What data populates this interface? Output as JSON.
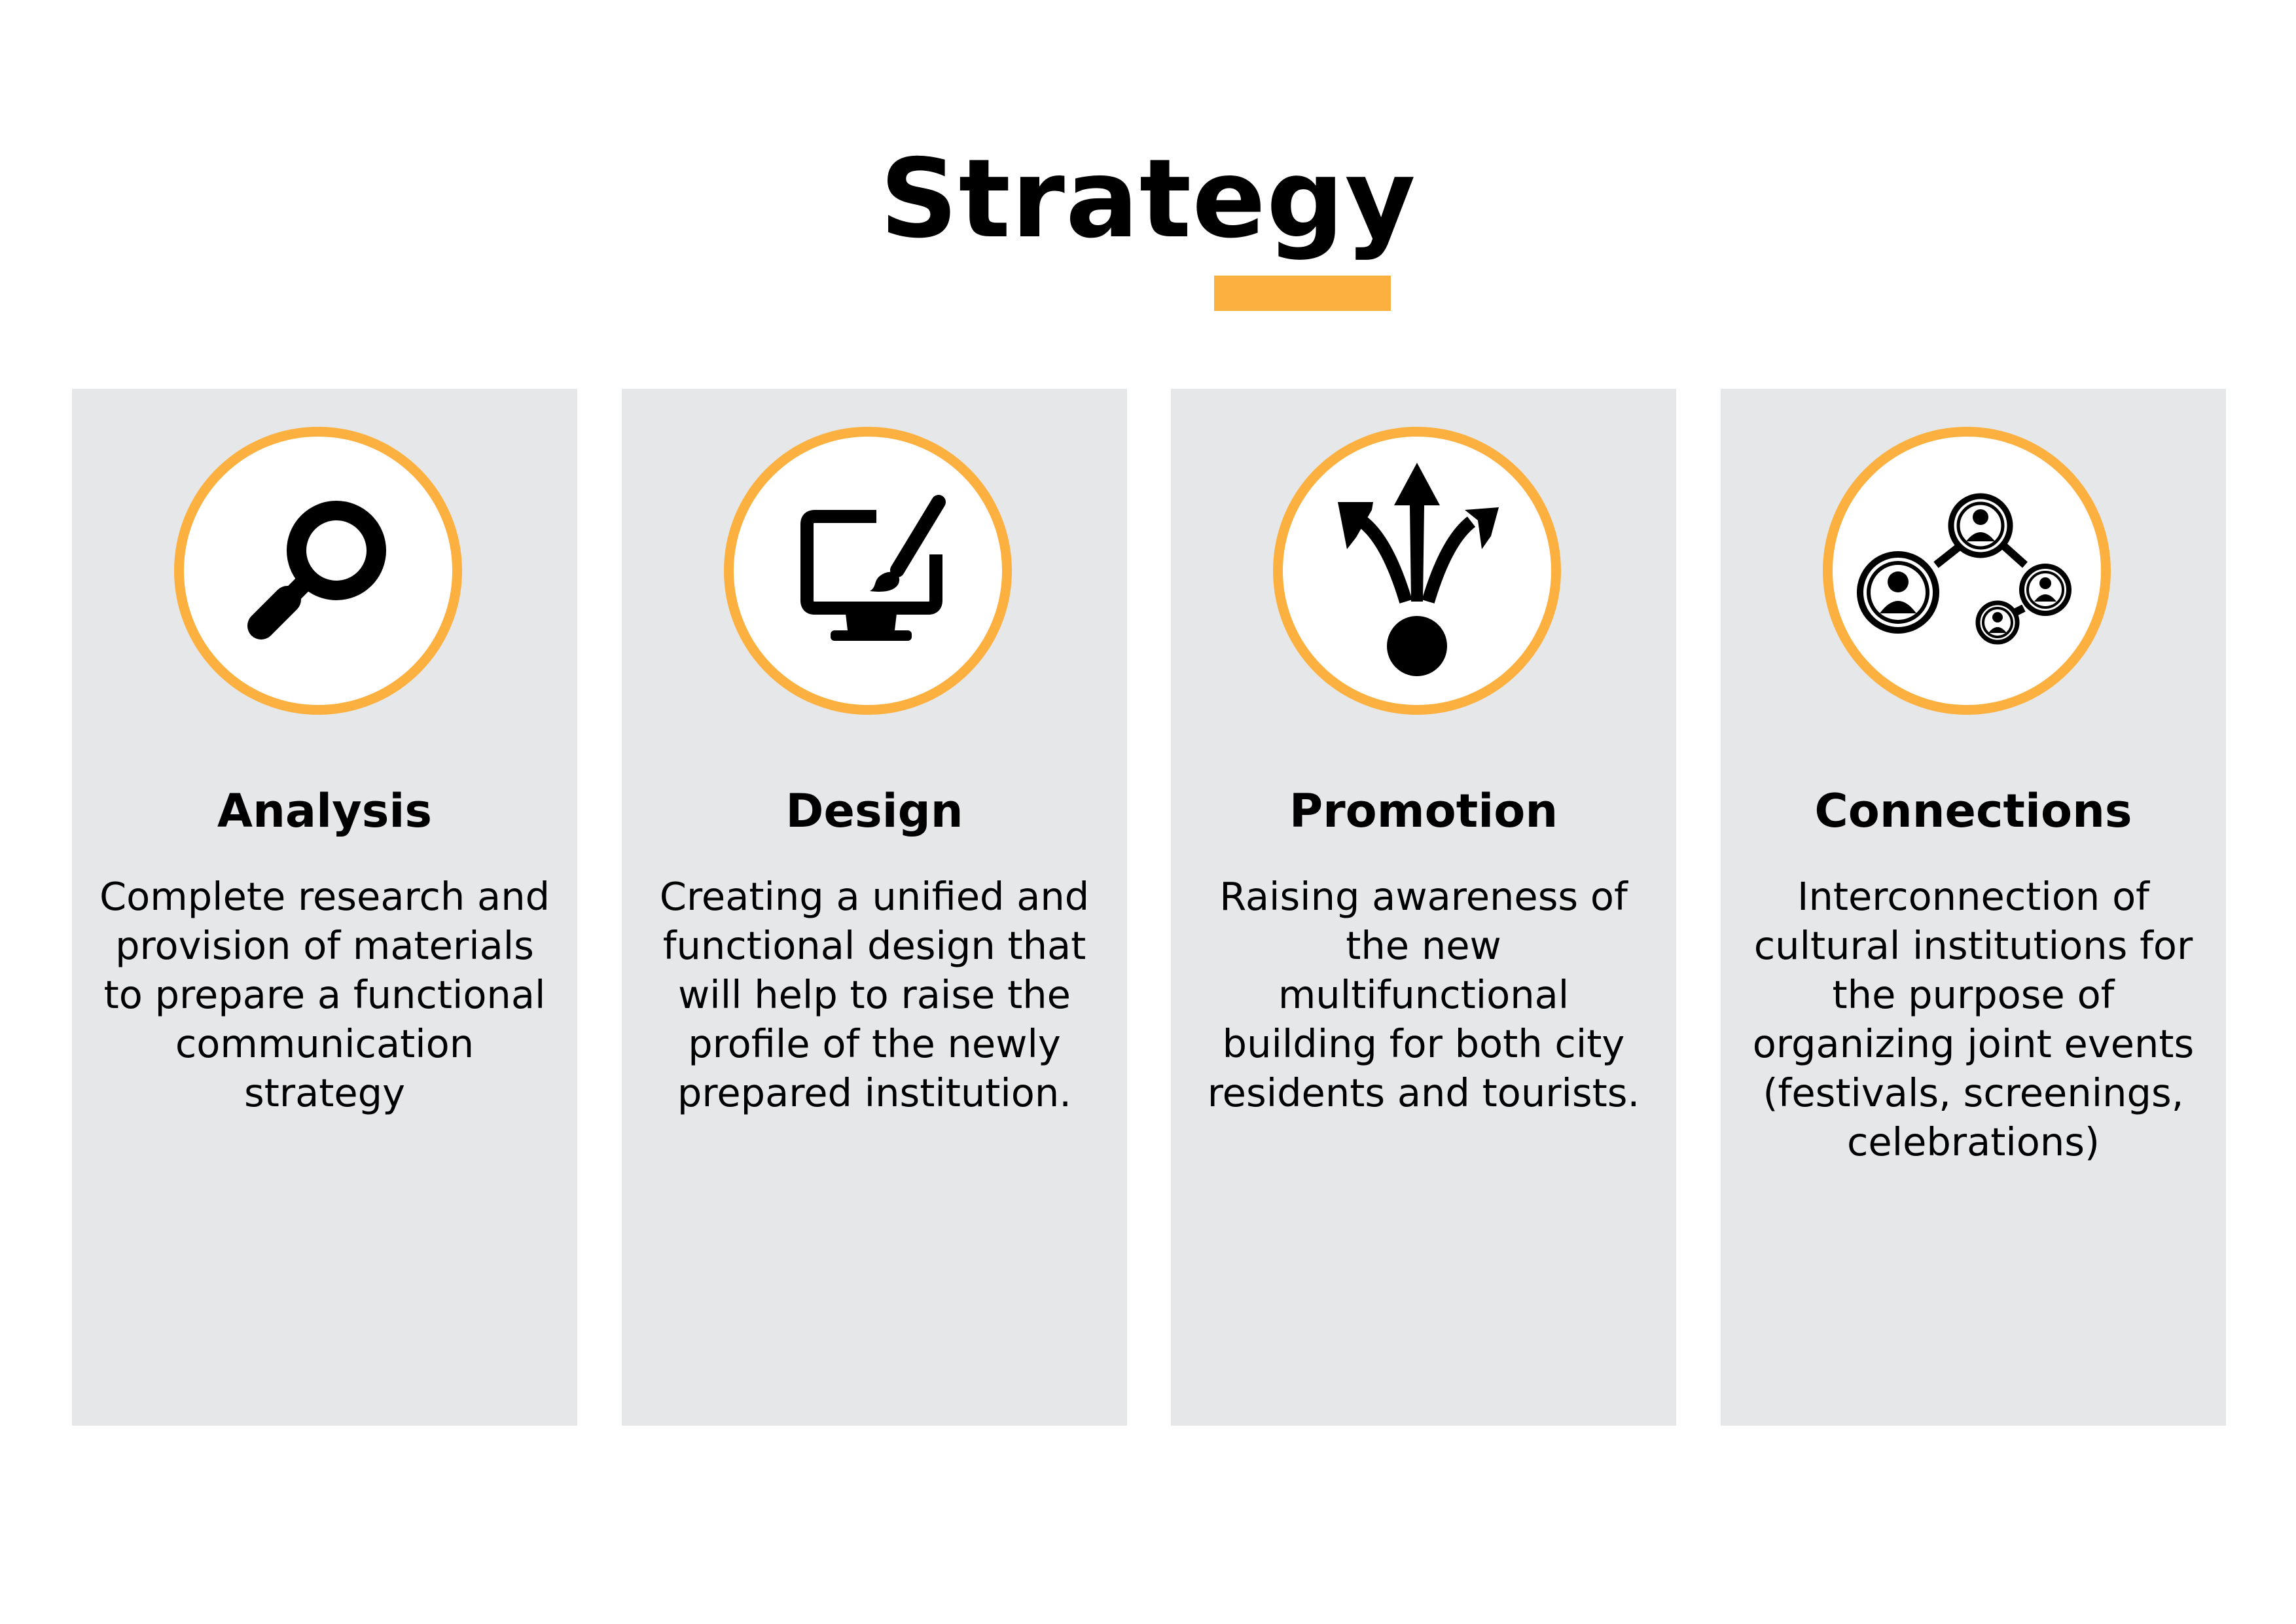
{
  "page": {
    "title": "Strategy",
    "accent_color": "#FBB040",
    "card_background": "#E6E7E8"
  },
  "cards": [
    {
      "title": "Analysis",
      "icon": "magnifying-glass-icon",
      "description": "Complete research and provision of materials to prepare a functional communication strategy"
    },
    {
      "title": "Design",
      "icon": "monitor-paintbrush-icon",
      "description": "Creating a unified and functional design that will help to raise the profile of the newly prepared institution."
    },
    {
      "title": "Promotion",
      "icon": "diverging-arrows-icon",
      "description": "Raising awareness of the new multifunctional building for both city residents and tourists."
    },
    {
      "title": "Connections",
      "icon": "people-network-icon",
      "description": "Interconnection of cultural institutions for the purpose of organizing joint events (festivals, screenings, celebrations)"
    }
  ]
}
